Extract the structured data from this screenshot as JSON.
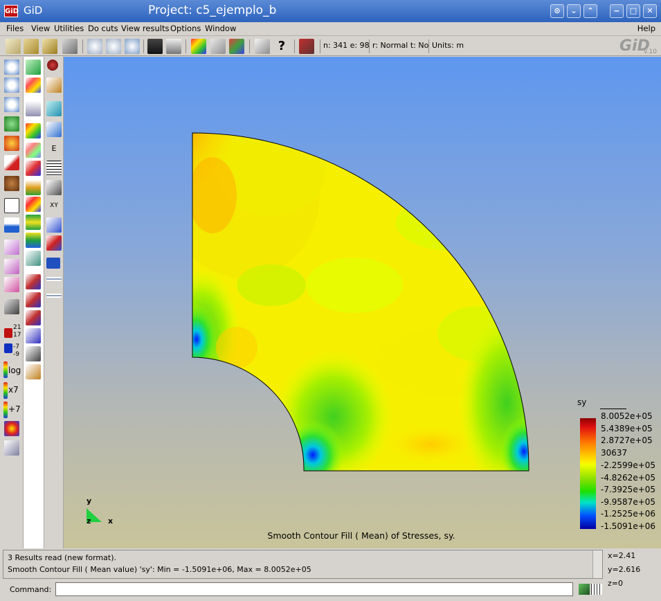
{
  "window": {
    "app_name": "GiD",
    "project_title": "Project: c5_ejemplo_b",
    "logo_text": "GiD",
    "buttons": [
      "⊙",
      "⌄",
      "⌃",
      "‒",
      "□",
      "✕"
    ]
  },
  "menu": {
    "items": [
      "Files",
      "View",
      "Utilities",
      "Do cuts",
      "View results",
      "Options",
      "Window"
    ],
    "help": "Help"
  },
  "toolbar": {
    "node_info": "n: 341 e: 98",
    "render_info": "r: Normal t: No",
    "units_info": "Units: m",
    "version": "v.10"
  },
  "side_panel": {
    "legend_max": "21",
    "legend_mid": "17",
    "legend_low1": "-7",
    "legend_low2": "-9",
    "log_label": "log",
    "x7_label": "x7",
    "plus7_label": "+7"
  },
  "plot": {
    "result_name": "sy",
    "legend_values": [
      "8.0052e+05",
      "5.4389e+05",
      "2.8727e+05",
      "30637",
      "-2.2599e+05",
      "-4.8262e+05",
      "-7.3925e+05",
      "-9.9587e+05",
      "-1.2525e+06",
      "-1.5091e+06"
    ],
    "caption": "Smooth Contour Fill ( Mean) of Stresses, sy.",
    "axis": {
      "x": "x",
      "y": "y",
      "z": "z"
    },
    "colors": {
      "max": "#8e0000",
      "mid": "#ffee00",
      "min": "#0000a0"
    }
  },
  "messages": {
    "line1": "3 Results read (new format).",
    "line2": "Smooth Contour Fill ( Mean value) 'sy': Min = -1.5091e+06, Max = 8.0052e+05"
  },
  "coords": {
    "x": "x=2.41",
    "y": "y=2.616",
    "z": "z=0"
  },
  "command": {
    "label": "Command:",
    "value": ""
  }
}
